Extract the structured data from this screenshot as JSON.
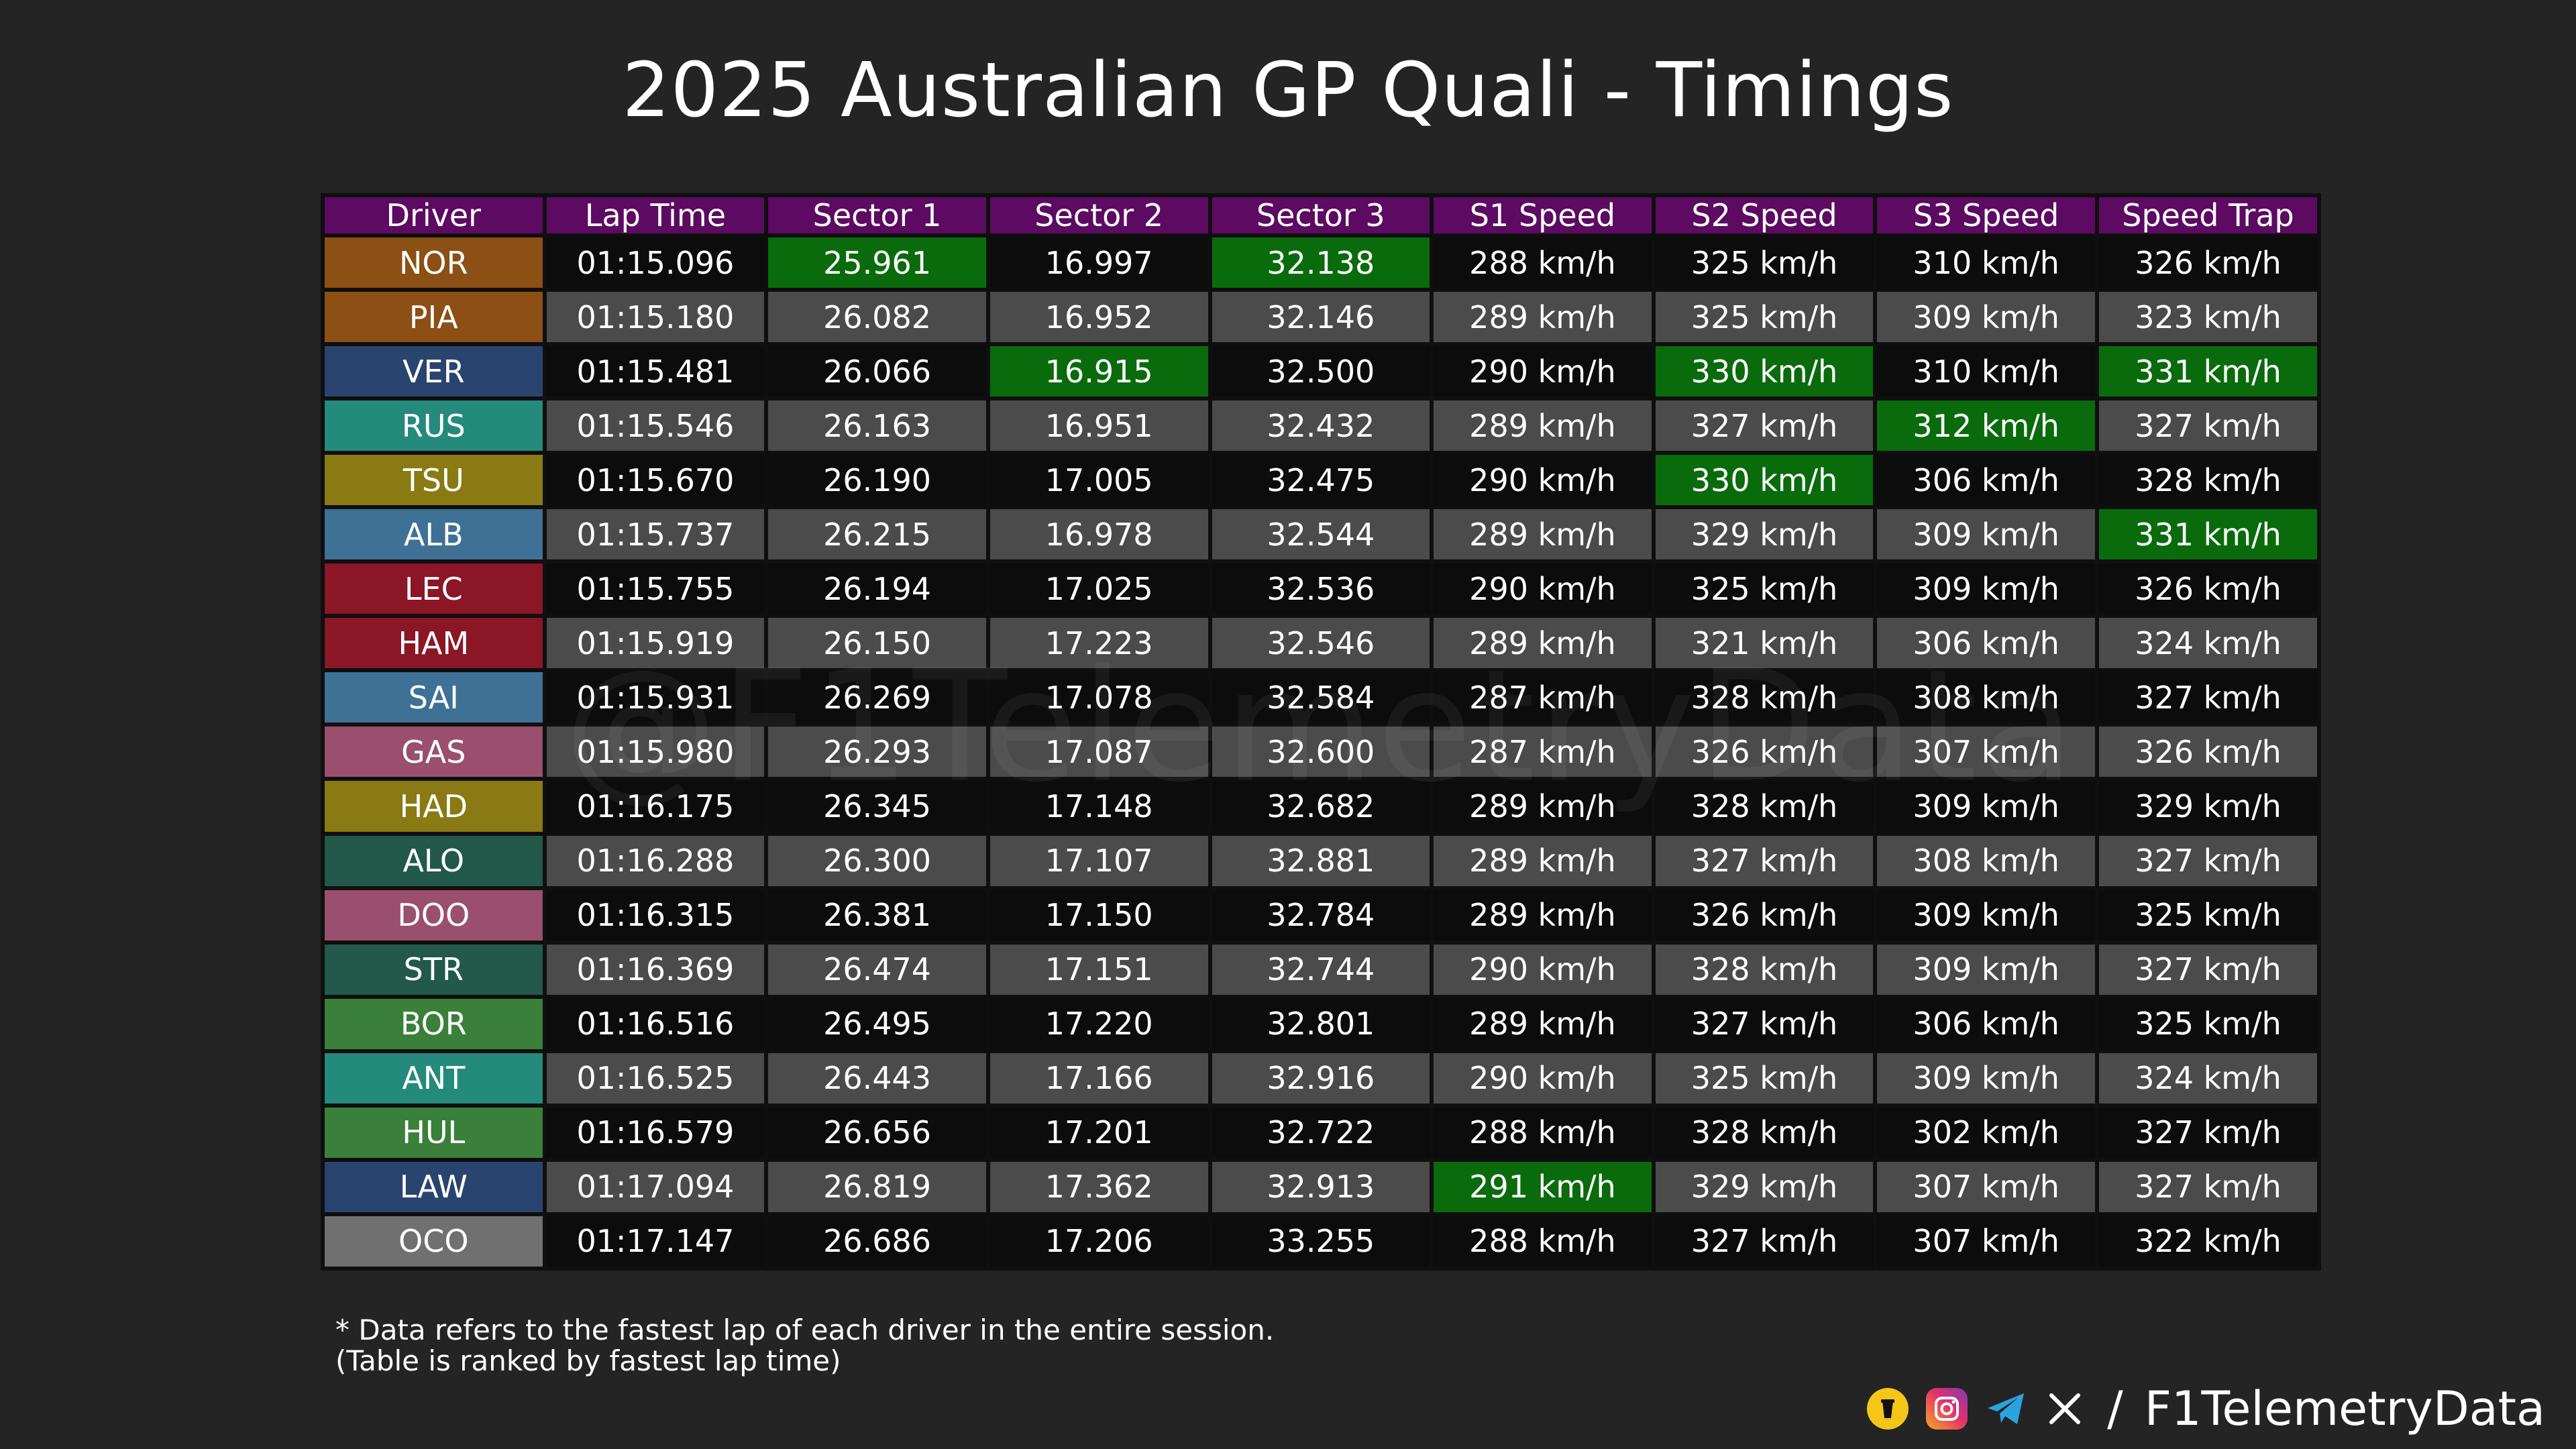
{
  "title": "2025 Australian GP Quali - Timings",
  "watermark": "@F1TelemetryData",
  "colors": {
    "header": "#5c0a62",
    "row_odd": "#0c0c0c",
    "row_even": "#4b4b4b",
    "best": "#0a6b0c",
    "background": "#242424"
  },
  "chart_data": {
    "type": "table",
    "columns": [
      "Driver",
      "Lap Time",
      "Sector 1",
      "Sector 2",
      "Sector 3",
      "S1 Speed",
      "S2 Speed",
      "S3 Speed",
      "Speed Trap"
    ],
    "rows": [
      {
        "driver": "NOR",
        "team_color": "#8c4f14",
        "cells": [
          "01:15.096",
          "25.961",
          "16.997",
          "32.138",
          "288 km/h",
          "325 km/h",
          "310 km/h",
          "326 km/h"
        ],
        "best": [
          false,
          true,
          false,
          true,
          false,
          false,
          false,
          false
        ]
      },
      {
        "driver": "PIA",
        "team_color": "#8c4f14",
        "cells": [
          "01:15.180",
          "26.082",
          "16.952",
          "32.146",
          "289 km/h",
          "325 km/h",
          "309 km/h",
          "323 km/h"
        ],
        "best": [
          false,
          false,
          false,
          false,
          false,
          false,
          false,
          false
        ]
      },
      {
        "driver": "VER",
        "team_color": "#2a4470",
        "cells": [
          "01:15.481",
          "26.066",
          "16.915",
          "32.500",
          "290 km/h",
          "330 km/h",
          "310 km/h",
          "331 km/h"
        ],
        "best": [
          false,
          false,
          true,
          false,
          false,
          true,
          false,
          true
        ]
      },
      {
        "driver": "RUS",
        "team_color": "#248a7c",
        "cells": [
          "01:15.546",
          "26.163",
          "16.951",
          "32.432",
          "289 km/h",
          "327 km/h",
          "312 km/h",
          "327 km/h"
        ],
        "best": [
          false,
          false,
          false,
          false,
          false,
          false,
          true,
          false
        ]
      },
      {
        "driver": "TSU",
        "team_color": "#8a7a14",
        "cells": [
          "01:15.670",
          "26.190",
          "17.005",
          "32.475",
          "290 km/h",
          "330 km/h",
          "306 km/h",
          "328 km/h"
        ],
        "best": [
          false,
          false,
          false,
          false,
          false,
          true,
          false,
          false
        ]
      },
      {
        "driver": "ALB",
        "team_color": "#3f7196",
        "cells": [
          "01:15.737",
          "26.215",
          "16.978",
          "32.544",
          "289 km/h",
          "329 km/h",
          "309 km/h",
          "331 km/h"
        ],
        "best": [
          false,
          false,
          false,
          false,
          false,
          false,
          false,
          true
        ]
      },
      {
        "driver": "LEC",
        "team_color": "#8a1626",
        "cells": [
          "01:15.755",
          "26.194",
          "17.025",
          "32.536",
          "290 km/h",
          "325 km/h",
          "309 km/h",
          "326 km/h"
        ],
        "best": [
          false,
          false,
          false,
          false,
          false,
          false,
          false,
          false
        ]
      },
      {
        "driver": "HAM",
        "team_color": "#8a1626",
        "cells": [
          "01:15.919",
          "26.150",
          "17.223",
          "32.546",
          "289 km/h",
          "321 km/h",
          "306 km/h",
          "324 km/h"
        ],
        "best": [
          false,
          false,
          false,
          false,
          false,
          false,
          false,
          false
        ]
      },
      {
        "driver": "SAI",
        "team_color": "#3f7196",
        "cells": [
          "01:15.931",
          "26.269",
          "17.078",
          "32.584",
          "287 km/h",
          "328 km/h",
          "308 km/h",
          "327 km/h"
        ],
        "best": [
          false,
          false,
          false,
          false,
          false,
          false,
          false,
          false
        ]
      },
      {
        "driver": "GAS",
        "team_color": "#9a4f6e",
        "cells": [
          "01:15.980",
          "26.293",
          "17.087",
          "32.600",
          "287 km/h",
          "326 km/h",
          "307 km/h",
          "326 km/h"
        ],
        "best": [
          false,
          false,
          false,
          false,
          false,
          false,
          false,
          false
        ]
      },
      {
        "driver": "HAD",
        "team_color": "#8a7a14",
        "cells": [
          "01:16.175",
          "26.345",
          "17.148",
          "32.682",
          "289 km/h",
          "328 km/h",
          "309 km/h",
          "329 km/h"
        ],
        "best": [
          false,
          false,
          false,
          false,
          false,
          false,
          false,
          false
        ]
      },
      {
        "driver": "ALO",
        "team_color": "#22594a",
        "cells": [
          "01:16.288",
          "26.300",
          "17.107",
          "32.881",
          "289 km/h",
          "327 km/h",
          "308 km/h",
          "327 km/h"
        ],
        "best": [
          false,
          false,
          false,
          false,
          false,
          false,
          false,
          false
        ]
      },
      {
        "driver": "DOO",
        "team_color": "#9a4f6e",
        "cells": [
          "01:16.315",
          "26.381",
          "17.150",
          "32.784",
          "289 km/h",
          "326 km/h",
          "309 km/h",
          "325 km/h"
        ],
        "best": [
          false,
          false,
          false,
          false,
          false,
          false,
          false,
          false
        ]
      },
      {
        "driver": "STR",
        "team_color": "#22594a",
        "cells": [
          "01:16.369",
          "26.474",
          "17.151",
          "32.744",
          "290 km/h",
          "328 km/h",
          "309 km/h",
          "327 km/h"
        ],
        "best": [
          false,
          false,
          false,
          false,
          false,
          false,
          false,
          false
        ]
      },
      {
        "driver": "BOR",
        "team_color": "#3a803a",
        "cells": [
          "01:16.516",
          "26.495",
          "17.220",
          "32.801",
          "289 km/h",
          "327 km/h",
          "306 km/h",
          "325 km/h"
        ],
        "best": [
          false,
          false,
          false,
          false,
          false,
          false,
          false,
          false
        ]
      },
      {
        "driver": "ANT",
        "team_color": "#248a7c",
        "cells": [
          "01:16.525",
          "26.443",
          "17.166",
          "32.916",
          "290 km/h",
          "325 km/h",
          "309 km/h",
          "324 km/h"
        ],
        "best": [
          false,
          false,
          false,
          false,
          false,
          false,
          false,
          false
        ]
      },
      {
        "driver": "HUL",
        "team_color": "#3a803a",
        "cells": [
          "01:16.579",
          "26.656",
          "17.201",
          "32.722",
          "288 km/h",
          "328 km/h",
          "302 km/h",
          "327 km/h"
        ],
        "best": [
          false,
          false,
          false,
          false,
          false,
          false,
          false,
          false
        ]
      },
      {
        "driver": "LAW",
        "team_color": "#2a4470",
        "cells": [
          "01:17.094",
          "26.819",
          "17.362",
          "32.913",
          "291 km/h",
          "329 km/h",
          "307 km/h",
          "327 km/h"
        ],
        "best": [
          false,
          false,
          false,
          false,
          true,
          false,
          false,
          false
        ]
      },
      {
        "driver": "OCO",
        "team_color": "#707070",
        "cells": [
          "01:17.147",
          "26.686",
          "17.206",
          "33.255",
          "288 km/h",
          "327 km/h",
          "307 km/h",
          "322 km/h"
        ],
        "best": [
          false,
          false,
          false,
          false,
          false,
          false,
          false,
          false
        ]
      }
    ]
  },
  "footnote": {
    "line1": "* Data refers to the fastest lap of each driver in the entire session.",
    "line2": "(Table is ranked by fastest lap time)"
  },
  "footer": {
    "icons": [
      "podcast-icon",
      "instagram-icon",
      "telegram-icon",
      "x-icon"
    ],
    "separator": "/",
    "handle": "F1TelemetryData"
  }
}
